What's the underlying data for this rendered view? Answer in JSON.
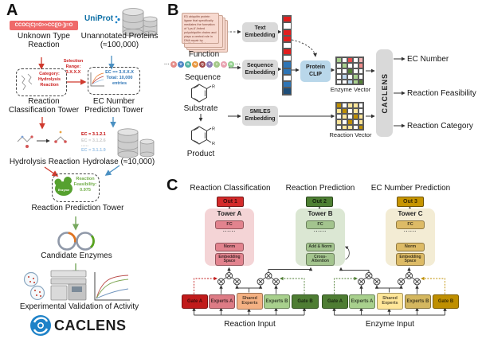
{
  "panel_a": {
    "label": "A",
    "smiles": "CCOC(C)=O>>CC([O-])=O",
    "unknown_reaction": "Unknown Type Reaction",
    "uniprot": "UniProt",
    "unannotated": "Unannotated Proteins (≈100,000)",
    "selection": "Selection Range: 3.X.X.X",
    "category": "Category: Hydrolysis Reaction",
    "ec_box_l1": "EC == 3.X.X.X",
    "ec_box_l2": "Total: 10,000",
    "ec_box_l3": "entries",
    "tower1": "Reaction Classification Tower",
    "tower2": "EC Number Prediction Tower",
    "hydrolysis": "Hydrolysis Reaction",
    "hydrolase": "Hydrolase (≈10,000)",
    "ec1": "EC = 3.1.2.1",
    "ec2": "EC = 3.1.2.6",
    "ec_dots": "·····",
    "ec3": "EC = 3.1.1.9",
    "enzyme": "Enzyme",
    "feas_l1": "Reaction",
    "feas_l2": "Feasibility:",
    "feas_value": "0.975",
    "tower3": "Reaction Prediction Tower",
    "candidates": "Candidate Enzymes",
    "experimental": "Experimental Validation of Activity",
    "logo": "CACLENS"
  },
  "panel_b": {
    "label": "B",
    "function_text": "E3 ubiquitin protein ligase that specifically mediates the formation of 'Lys-6'-linked polyubiquitin chains and plays a central role in DNA repair by facilitating cellular responses...",
    "function": "Function",
    "sequence": "Sequence",
    "substrate": "Substrate",
    "product": "Product",
    "r_label": "R",
    "ellipsis": "···",
    "text_embedding": "Text Embedding",
    "sequence_embedding": "Sequence Embedding",
    "smiles_embedding": "SMILES Embedding",
    "protein_clip": "Protein CLIP",
    "enzyme_vector": "Enzyme Vector",
    "reaction_vector": "Reaction Vector",
    "caclens": "CACLENS",
    "out_ec": "EC Number",
    "out_feasibility": "Reaction Feasibility",
    "out_category": "Reaction Category",
    "beads": [
      {
        "letter": "E",
        "color": "#e58b87"
      },
      {
        "letter": "V",
        "color": "#4f86c6"
      },
      {
        "letter": "G",
        "color": "#52b3a4"
      },
      {
        "letter": "N",
        "color": "#e8973f"
      },
      {
        "letter": "Q",
        "color": "#a04848"
      },
      {
        "letter": "V",
        "color": "#8d7ab5"
      },
      {
        "letter": "I",
        "color": "#a5c98a"
      },
      {
        "letter": "N",
        "color": "#e8a1b0"
      },
      {
        "letter": "G",
        "color": "#93cf8e"
      }
    ],
    "text_vector_cells": [
      "#e21d1d",
      "#ffffff",
      "#e21d1d",
      "#e21d1d",
      "#ffffff",
      "#e21d1d"
    ],
    "seq_vector_cells": [
      "#ffffff",
      "#2e75b6",
      "#2e75b6",
      "#ffffff",
      "#2e75b6",
      "#1f4e79"
    ],
    "enzyme_matrix_cells": [
      "#a9d18e",
      "#ffffff",
      "#e84c4c",
      "#ffffff",
      "#f4b6b6",
      "#ffffff",
      "#a9d18e",
      "#ffffff",
      "#ffffff",
      "#f08a8a",
      "#ffffff",
      "#ffffff",
      "#548235",
      "#ffffff",
      "#ffffff",
      "#ffffff",
      "#bdd7ee",
      "#ffffff",
      "#a9d18e",
      "#ffffff",
      "#ffffff",
      "#ffffff",
      "#bdd7ee",
      "#a9d18e",
      "#548235"
    ],
    "reaction_matrix_cells": [
      "#bf8f00",
      "#ffffff",
      "#ffe699",
      "#ffe699",
      "#ffffff",
      "#ffe699",
      "#bf8f00",
      "#ffffff",
      "#ffe699",
      "#ffffff",
      "#ffffff",
      "#ffe699",
      "#ffffff",
      "#bf8f00",
      "#ffe699",
      "#ffe699",
      "#ffffff",
      "#bf8f00",
      "#ffffff",
      "#ffe699",
      "#ffffff",
      "#ffe699",
      "#ffe699",
      "#ffffff",
      "#bf8f00"
    ]
  },
  "panel_c": {
    "label": "C",
    "header1": "Reaction Classification",
    "header2": "Reaction Prediction",
    "header3": "EC Number Prediction",
    "out1": "Out 1",
    "out2": "Out 2",
    "out3": "Out 3",
    "tower_a": {
      "title": "Tower A",
      "fc": "FC",
      "dots": "......",
      "norm": "Norm",
      "emb": "Embedding Space"
    },
    "tower_b": {
      "title": "Tower B",
      "fc": "FC",
      "dots": "......",
      "addnorm": "Add & Norm",
      "cross": "Cross-Attention"
    },
    "tower_c": {
      "title": "Tower C",
      "fc": "FC",
      "dots": "......",
      "norm": "Norm",
      "emb": "Embedding Space"
    },
    "reaction_moe": {
      "gate_a": "Gate A",
      "experts_a": "Experts A",
      "shared": "Shared Experts",
      "experts_b": "Experts B",
      "gate_b": "Gate B",
      "input": "Reaction Input"
    },
    "enzyme_moe": {
      "gate_a": "Gate A",
      "experts_a": "Experts A",
      "shared": "Shared Experts",
      "experts_b": "Experts B",
      "gate_b": "Gate B",
      "input": "Enzyme Input"
    }
  },
  "colors": {
    "panel_red_box": "#ef6a6a",
    "arrow_red": "#cf3a2e",
    "arrow_blue": "#4a90c2",
    "arrow_green": "#76a85e",
    "embedding_box": "#d9d9d9",
    "protein_clip_box": "#b9d7ea",
    "caclens_bar": "#d9d9d9",
    "out1": "#d42a2a",
    "out2": "#4e8033",
    "out3": "#c79500",
    "tower_a_bg": "#f4d4d6",
    "tower_a_box": "#e2838e",
    "tower_b_bg": "#dbe7d3",
    "tower_b_box": "#a3c48e",
    "tower_c_bg": "#f3ecd4",
    "tower_c_box": "#ddbb66",
    "gate_a_reaction": "#c11b1b",
    "experts_a_reaction": "#dd7b85",
    "shared_reaction": "#f4b183",
    "experts_b_reaction": "#a8d08d",
    "gate_b_reaction": "#4e7d33",
    "gate_a_enzyme": "#4e7d33",
    "experts_a_enzyme": "#a8d08d",
    "shared_enzyme": "#ffe699",
    "experts_b_enzyme": "#d4b75f",
    "gate_b_enzyme": "#bf8f00",
    "ec_red": "#c00000",
    "ec_gray": "#c9c9c9",
    "ec_blue": "#9dc3e6",
    "feas_green": "#70ad47"
  }
}
